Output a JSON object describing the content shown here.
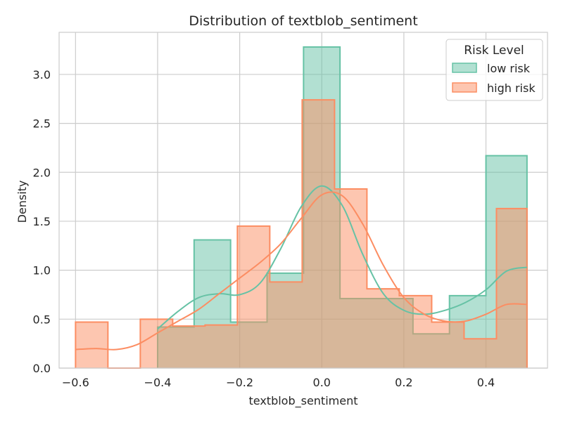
{
  "chart_data": {
    "type": "histogram",
    "title": "Distribution of textblob_sentiment",
    "xlabel": "textblob_sentiment",
    "ylabel": "Density",
    "xlim": [
      -0.64,
      0.55
    ],
    "ylim": [
      0,
      3.43
    ],
    "x_ticks": [
      -0.6,
      -0.4,
      -0.2,
      0.0,
      0.2,
      0.4
    ],
    "x_tick_labels": [
      "−0.6",
      "−0.4",
      "−0.2",
      "0.0",
      "0.2",
      "0.4"
    ],
    "y_ticks": [
      0,
      0.5,
      1.0,
      1.5,
      2.0,
      2.5,
      3.0
    ],
    "y_tick_labels": [
      "0.0",
      "0.5",
      "1.0",
      "1.5",
      "2.0",
      "2.5",
      "3.0"
    ],
    "grid": true,
    "legend": {
      "title": "Risk Level",
      "position": "top-right",
      "entries": [
        "low risk",
        "high risk"
      ]
    },
    "series": [
      {
        "name": "low risk",
        "color": "#66c2a5",
        "bin_edges": [
          -0.4,
          -0.3111,
          -0.2222,
          -0.1333,
          -0.0444,
          0.0444,
          0.1333,
          0.2222,
          0.3111,
          0.4,
          0.5
        ],
        "density": [
          0.42,
          1.31,
          0.47,
          0.97,
          3.28,
          0.71,
          0.71,
          0.35,
          0.74,
          2.17
        ],
        "kde_x": [
          -0.4,
          -0.35,
          -0.3,
          -0.25,
          -0.2,
          -0.15,
          -0.1,
          -0.05,
          0.0,
          0.05,
          0.1,
          0.15,
          0.2,
          0.25,
          0.3,
          0.35,
          0.4,
          0.45,
          0.5
        ],
        "kde_y": [
          0.4,
          0.58,
          0.72,
          0.76,
          0.75,
          0.87,
          1.22,
          1.65,
          1.86,
          1.66,
          1.16,
          0.76,
          0.59,
          0.55,
          0.59,
          0.67,
          0.8,
          0.99,
          1.03
        ]
      },
      {
        "name": "high risk",
        "color": "#fc8d62",
        "bin_edges": [
          -0.6,
          -0.5211,
          -0.4422,
          -0.3633,
          -0.2844,
          -0.2056,
          -0.1267,
          -0.0478,
          0.0311,
          0.11,
          0.1889,
          0.2678,
          0.3467,
          0.4256,
          0.5
        ],
        "density": [
          0.47,
          0.0,
          0.5,
          0.43,
          0.44,
          1.45,
          0.88,
          2.74,
          1.83,
          0.81,
          0.74,
          0.47,
          0.3,
          1.63
        ],
        "kde_x": [
          -0.6,
          -0.55,
          -0.5,
          -0.45,
          -0.4,
          -0.35,
          -0.3,
          -0.25,
          -0.2,
          -0.15,
          -0.1,
          -0.05,
          0.0,
          0.05,
          0.1,
          0.15,
          0.2,
          0.25,
          0.3,
          0.35,
          0.4,
          0.45,
          0.5
        ],
        "kde_y": [
          0.19,
          0.2,
          0.19,
          0.24,
          0.36,
          0.48,
          0.6,
          0.76,
          0.92,
          1.08,
          1.27,
          1.53,
          1.77,
          1.76,
          1.47,
          1.05,
          0.72,
          0.55,
          0.48,
          0.48,
          0.55,
          0.65,
          0.65
        ]
      }
    ]
  }
}
